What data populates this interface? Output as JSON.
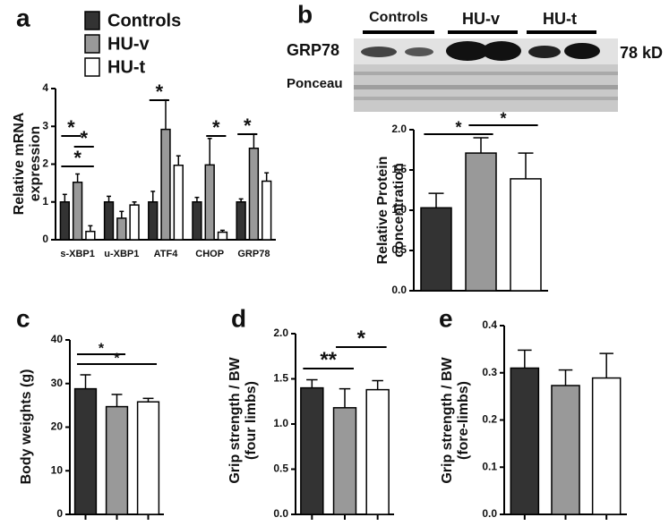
{
  "chart_data": [
    {
      "type": "bar",
      "panel": "a",
      "ylabel": [
        "Relative mRNA",
        "expression"
      ],
      "categories": [
        "s-XBP1",
        "u-XBP1",
        "ATF4",
        "CHOP",
        "GRP78"
      ],
      "series": [
        {
          "name": "Controls",
          "color": "#333333",
          "values": [
            1,
            1,
            1,
            1,
            1
          ],
          "errors": [
            0.2,
            0.15,
            0.28,
            0.12,
            0.08
          ]
        },
        {
          "name": "HU-v",
          "color": "#999999",
          "values": [
            1.52,
            0.57,
            2.92,
            1.98,
            2.42
          ],
          "errors": [
            0.22,
            0.18,
            0.78,
            0.7,
            0.38
          ]
        },
        {
          "name": "HU-t",
          "color": "#ffffff",
          "values": [
            0.22,
            0.92,
            1.97,
            0.2,
            1.55
          ],
          "errors": [
            0.15,
            0.08,
            0.25,
            0.05,
            0.22
          ]
        }
      ],
      "ylim": [
        0,
        4
      ],
      "yticks": [
        0,
        1,
        2,
        3,
        4
      ],
      "legend": "top",
      "annotations": [
        {
          "text": "*",
          "category": 0,
          "bars": [
            0,
            1
          ]
        },
        {
          "text": "*",
          "category": 0,
          "bars": [
            1,
            2
          ]
        },
        {
          "text": "*",
          "category": 0,
          "bars": [
            0,
            2
          ]
        },
        {
          "text": "*",
          "category": 2,
          "bars": [
            0,
            1
          ]
        },
        {
          "text": "*",
          "category": 3,
          "bars": [
            1,
            2
          ]
        },
        {
          "text": "*",
          "category": 4,
          "bars": [
            0,
            1
          ]
        }
      ]
    },
    {
      "type": "bar",
      "panel": "b",
      "ylabel": [
        "Relative Protein",
        "concentration"
      ],
      "values": [
        1.03,
        1.71,
        1.39
      ],
      "errors": [
        0.18,
        0.19,
        0.32
      ],
      "colors": [
        "#333333",
        "#999999",
        "#ffffff"
      ],
      "ylim": [
        0,
        2
      ],
      "yticks": [
        {
          "value": 0,
          "label": "0.0"
        },
        {
          "value": 0.5,
          "label": "0.5"
        },
        {
          "value": 1,
          "label": "1.0"
        },
        {
          "value": 1.5,
          "label": "1.5"
        },
        {
          "value": 2,
          "label": "2.0"
        }
      ],
      "annotations": [
        {
          "text": "*",
          "bars": [
            0,
            1
          ]
        },
        {
          "text": "*",
          "bars": [
            1,
            2
          ]
        }
      ],
      "blot": {
        "groups": [
          "Controls",
          "HU-v",
          "HU-t"
        ],
        "protein": "GRP78",
        "size": "78 kD",
        "loading": "Ponceau"
      }
    },
    {
      "type": "bar",
      "panel": "c",
      "ylabel": [
        "Body weights  (g)"
      ],
      "categories": [
        null,
        null,
        null
      ],
      "values": [
        28.8,
        24.7,
        25.8
      ],
      "errors": [
        3.2,
        2.8,
        0.8
      ],
      "colors": [
        "#333333",
        "#999999",
        "#ffffff"
      ],
      "ylim": [
        0,
        40
      ],
      "yticks": [
        0,
        10,
        20,
        30,
        40
      ],
      "annotations": [
        {
          "text": "*",
          "bars": [
            0,
            1
          ]
        },
        {
          "text": "*",
          "bars": [
            0,
            2
          ]
        }
      ]
    },
    {
      "type": "bar",
      "panel": "d",
      "ylabel": [
        "Grip strength / BW",
        "(four limbs)"
      ],
      "categories": [
        null,
        null,
        null
      ],
      "values": [
        1.4,
        1.18,
        1.38
      ],
      "errors": [
        0.09,
        0.21,
        0.1
      ],
      "colors": [
        "#333333",
        "#999999",
        "#ffffff"
      ],
      "ylim": [
        0,
        2
      ],
      "yticks": [
        {
          "value": 0,
          "label": "0.0"
        },
        {
          "value": 0.5,
          "label": "0.5"
        },
        {
          "value": 1,
          "label": "1.0"
        },
        {
          "value": 1.5,
          "label": "1.5"
        },
        {
          "value": 2,
          "label": "2.0"
        }
      ],
      "annotations": [
        {
          "text": "**",
          "bars": [
            0,
            1
          ]
        },
        {
          "text": "*",
          "bars": [
            1,
            2
          ]
        }
      ]
    },
    {
      "type": "bar",
      "panel": "e",
      "ylabel": [
        "Grip strength / BW",
        "(fore-limbs)"
      ],
      "categories": [
        null,
        null,
        null
      ],
      "values": [
        0.31,
        0.273,
        0.289
      ],
      "errors": [
        0.038,
        0.033,
        0.052
      ],
      "colors": [
        "#333333",
        "#999999",
        "#ffffff"
      ],
      "ylim": [
        0,
        0.4
      ],
      "yticks": [
        {
          "value": 0,
          "label": "0.0"
        },
        {
          "value": 0.1,
          "label": "0.1"
        },
        {
          "value": 0.2,
          "label": "0.2"
        },
        {
          "value": 0.3,
          "label": "0.3"
        },
        {
          "value": 0.4,
          "label": "0.4"
        }
      ],
      "annotations": []
    }
  ]
}
